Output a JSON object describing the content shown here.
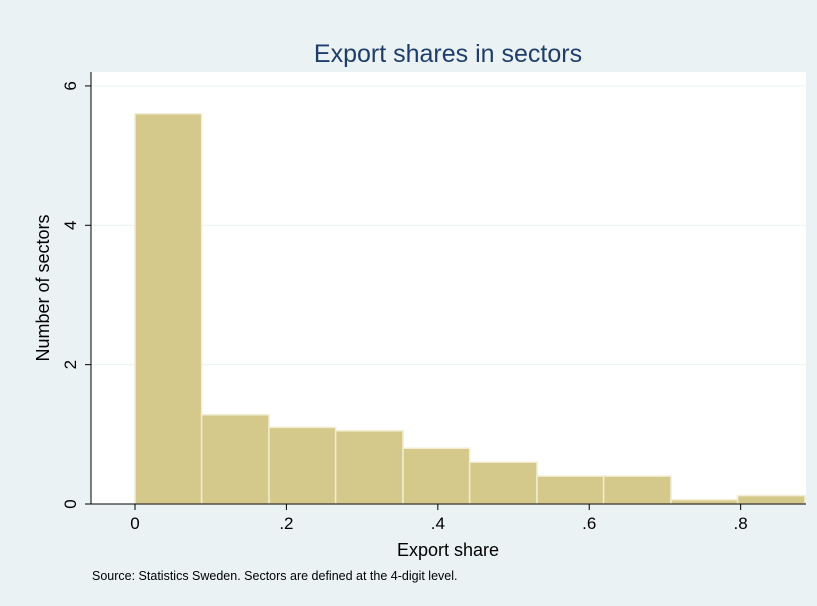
{
  "colors": {
    "background": "#eaf2f3",
    "plot_background": "#ffffff",
    "bar_fill": "#d4c98a",
    "bar_stroke": "#f2ecd0",
    "gridline": "#eaf2f3",
    "title": "#1f3d6b",
    "text": "#000000"
  },
  "chart_data": {
    "type": "bar",
    "subtype": "histogram",
    "title": "Export shares in sectors",
    "xlabel": "Export share",
    "ylabel": "Number of sectors",
    "note": "Source: Statistics Sweden. Sectors are defined at the 4-digit level.",
    "xlim": [
      -0.06,
      0.9
    ],
    "ylim": [
      0,
      6.2
    ],
    "xticks": [
      0,
      0.2,
      0.4,
      0.6,
      0.8
    ],
    "xtick_labels": [
      "0",
      ".2",
      ".4",
      ".6",
      ".8"
    ],
    "yticks": [
      0,
      2,
      4,
      6
    ],
    "ytick_labels": [
      "0",
      "2",
      "4",
      "6"
    ],
    "grid": true,
    "bins": [
      {
        "x0": 0.0,
        "x1": 0.088,
        "value": 5.6
      },
      {
        "x0": 0.088,
        "x1": 0.177,
        "value": 1.28
      },
      {
        "x0": 0.177,
        "x1": 0.265,
        "value": 1.1
      },
      {
        "x0": 0.265,
        "x1": 0.354,
        "value": 1.05
      },
      {
        "x0": 0.354,
        "x1": 0.442,
        "value": 0.8
      },
      {
        "x0": 0.442,
        "x1": 0.531,
        "value": 0.6
      },
      {
        "x0": 0.531,
        "x1": 0.619,
        "value": 0.4
      },
      {
        "x0": 0.619,
        "x1": 0.708,
        "value": 0.4
      },
      {
        "x0": 0.708,
        "x1": 0.796,
        "value": 0.06
      },
      {
        "x0": 0.796,
        "x1": 0.885,
        "value": 0.12
      }
    ]
  }
}
